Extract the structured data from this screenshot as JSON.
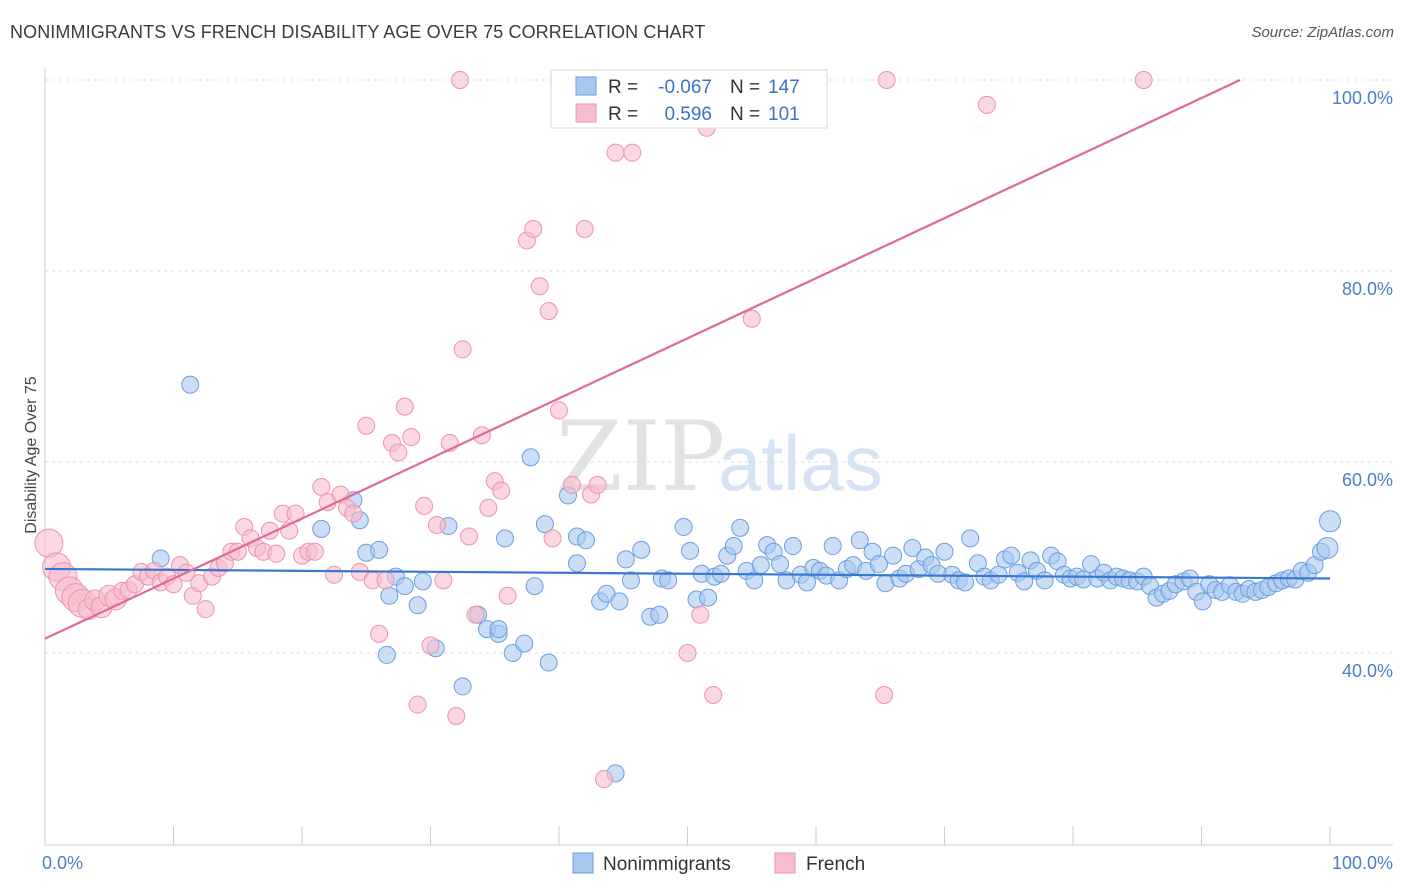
{
  "title": "NONIMMIGRANTS VS FRENCH DISABILITY AGE OVER 75 CORRELATION CHART",
  "source": "Source: ZipAtlas.com",
  "watermark": {
    "zip": "ZIP",
    "atlas": "atlas"
  },
  "colors": {
    "blue_fill": "#a9c8ef",
    "blue_stroke": "#6b9ee0",
    "blue_line": "#3a78cf",
    "pink_fill": "#f7bccd",
    "pink_stroke": "#ee93ae",
    "pink_line": "#e06a92",
    "grid": "#dddddd",
    "axis_text": "#4a7fc8"
  },
  "legend": {
    "rows": [
      {
        "r_label": "R =",
        "r_value": "-0.067",
        "n_label": "N =",
        "n_value": "147",
        "series": "blue"
      },
      {
        "r_label": "R =",
        "r_value": "0.596",
        "n_label": "N =",
        "n_value": "101",
        "series": "pink"
      }
    ]
  },
  "bottom_legend": [
    {
      "label": "Nonimmigrants",
      "series": "blue"
    },
    {
      "label": "French",
      "series": "pink"
    }
  ],
  "chart_data": {
    "type": "scatter",
    "title": "NONIMMIGRANTS VS FRENCH DISABILITY AGE OVER 75 CORRELATION CHART",
    "xlabel": "",
    "ylabel": "Disability Age Over 75",
    "xlim": [
      0,
      100
    ],
    "ylim": [
      20,
      102
    ],
    "x_tick_labels": [
      "0.0%",
      "100.0%"
    ],
    "y_ticks": [
      40,
      60,
      80,
      100
    ],
    "y_tick_labels": [
      "40.0%",
      "60.0%",
      "80.0%",
      "100.0%"
    ],
    "grid": true,
    "legend_position": "top-center",
    "series": [
      {
        "name": "Nonimmigrants",
        "color": "blue",
        "trend": {
          "x": [
            0,
            100
          ],
          "y": [
            48.8,
            47.8
          ]
        },
        "points": [
          [
            9,
            49.9
          ],
          [
            11.3,
            68.1
          ],
          [
            21.5,
            53
          ],
          [
            24,
            56
          ],
          [
            24.5,
            53.9
          ],
          [
            25,
            50.5
          ],
          [
            26,
            50.8
          ],
          [
            26.6,
            39.8
          ],
          [
            26.8,
            46
          ],
          [
            27.3,
            48
          ],
          [
            28,
            47
          ],
          [
            29,
            45
          ],
          [
            29.4,
            47.5
          ],
          [
            30.4,
            40.5
          ],
          [
            31.4,
            53.3
          ],
          [
            32.5,
            36.5
          ],
          [
            33.7,
            44
          ],
          [
            34.4,
            42.5
          ],
          [
            35.3,
            42
          ],
          [
            35.3,
            42.5
          ],
          [
            35.8,
            52
          ],
          [
            36.4,
            40
          ],
          [
            37.3,
            41
          ],
          [
            37.8,
            60.5
          ],
          [
            38.1,
            47
          ],
          [
            38.9,
            53.5
          ],
          [
            39.2,
            39
          ],
          [
            40.7,
            56.5
          ],
          [
            41.4,
            49.4
          ],
          [
            41.4,
            52.2
          ],
          [
            42.1,
            51.8
          ],
          [
            43.2,
            45.4
          ],
          [
            43.7,
            46.2
          ],
          [
            44.4,
            27.4
          ],
          [
            44.7,
            45.4
          ],
          [
            45.2,
            49.8
          ],
          [
            45.6,
            47.6
          ],
          [
            46.4,
            50.8
          ],
          [
            47.1,
            43.8
          ],
          [
            47.8,
            44
          ],
          [
            48,
            47.8
          ],
          [
            48.5,
            47.6
          ],
          [
            49.7,
            53.2
          ],
          [
            50.2,
            50.7
          ],
          [
            50.7,
            45.6
          ],
          [
            51.1,
            48.3
          ],
          [
            51.6,
            45.8
          ],
          [
            52.1,
            48
          ],
          [
            52.6,
            48.3
          ],
          [
            53.1,
            50.2
          ],
          [
            53.6,
            51.2
          ],
          [
            54.1,
            53.1
          ],
          [
            54.6,
            48.6
          ],
          [
            55.2,
            47.6
          ],
          [
            55.7,
            49.2
          ],
          [
            56.2,
            51.3
          ],
          [
            56.7,
            50.6
          ],
          [
            57.2,
            49.3
          ],
          [
            57.7,
            47.6
          ],
          [
            58.2,
            51.2
          ],
          [
            58.8,
            48.2
          ],
          [
            59.3,
            47.4
          ],
          [
            59.8,
            48.9
          ],
          [
            60.3,
            48.6
          ],
          [
            60.8,
            48.1
          ],
          [
            61.3,
            51.2
          ],
          [
            61.8,
            47.6
          ],
          [
            62.4,
            48.8
          ],
          [
            62.9,
            49.2
          ],
          [
            63.4,
            51.8
          ],
          [
            63.9,
            48.6
          ],
          [
            64.4,
            50.6
          ],
          [
            64.9,
            49.3
          ],
          [
            65.4,
            47.3
          ],
          [
            66,
            50.2
          ],
          [
            66.5,
            47.8
          ],
          [
            67,
            48.3
          ],
          [
            67.5,
            51
          ],
          [
            68,
            48.8
          ],
          [
            68.5,
            50
          ],
          [
            69,
            49.2
          ],
          [
            69.5,
            48.3
          ],
          [
            70,
            50.6
          ],
          [
            70.6,
            48.2
          ],
          [
            71.1,
            47.6
          ],
          [
            71.6,
            47.4
          ],
          [
            72,
            52
          ],
          [
            72.6,
            49.4
          ],
          [
            73.1,
            48
          ],
          [
            73.6,
            47.6
          ],
          [
            74.2,
            48.2
          ],
          [
            74.7,
            49.8
          ],
          [
            75.2,
            50.2
          ],
          [
            75.7,
            48.4
          ],
          [
            76.2,
            47.5
          ],
          [
            76.7,
            49.7
          ],
          [
            77.2,
            48.6
          ],
          [
            77.8,
            47.6
          ],
          [
            78.3,
            50.2
          ],
          [
            78.8,
            49.6
          ],
          [
            79.3,
            48.2
          ],
          [
            79.8,
            47.8
          ],
          [
            80.3,
            48
          ],
          [
            80.8,
            47.7
          ],
          [
            81.4,
            49.3
          ],
          [
            81.9,
            47.8
          ],
          [
            82.4,
            48.4
          ],
          [
            82.9,
            47.6
          ],
          [
            83.4,
            48
          ],
          [
            83.9,
            47.8
          ],
          [
            84.4,
            47.6
          ],
          [
            85,
            47.5
          ],
          [
            85.5,
            48
          ],
          [
            86,
            47
          ],
          [
            86.5,
            45.8
          ],
          [
            87,
            46.2
          ],
          [
            87.5,
            46.5
          ],
          [
            88,
            47.2
          ],
          [
            88.6,
            47.5
          ],
          [
            89.1,
            47.8
          ],
          [
            89.6,
            46.4
          ],
          [
            90.1,
            45.4
          ],
          [
            90.6,
            47.2
          ],
          [
            91.1,
            46.6
          ],
          [
            91.6,
            46.4
          ],
          [
            92.2,
            47.1
          ],
          [
            92.7,
            46.4
          ],
          [
            93.2,
            46.2
          ],
          [
            93.7,
            46.7
          ],
          [
            94.2,
            46.4
          ],
          [
            94.7,
            46.6
          ],
          [
            95.2,
            46.9
          ],
          [
            95.8,
            47.3
          ],
          [
            96.3,
            47.6
          ],
          [
            96.8,
            47.8
          ],
          [
            97.3,
            47.7
          ],
          [
            97.8,
            48.6
          ],
          [
            98.3,
            48.4
          ],
          [
            98.8,
            49.2
          ],
          [
            99.3,
            50.6
          ],
          [
            99.8,
            51
          ],
          [
            100,
            53.8
          ]
        ]
      },
      {
        "name": "French",
        "color": "pink",
        "trend": {
          "x": [
            0,
            93
          ],
          "y": [
            41.5,
            100
          ]
        },
        "points": [
          [
            0.3,
            51.5
          ],
          [
            0.9,
            49
          ],
          [
            1.4,
            48
          ],
          [
            1.9,
            46.5
          ],
          [
            2.4,
            45.8
          ],
          [
            2.9,
            45.2
          ],
          [
            3.4,
            44.6
          ],
          [
            3.9,
            45.5
          ],
          [
            4.4,
            44.8
          ],
          [
            5,
            46
          ],
          [
            5.5,
            45.6
          ],
          [
            6,
            46.5
          ],
          [
            6.5,
            46.6
          ],
          [
            7,
            47.2
          ],
          [
            7.5,
            48.5
          ],
          [
            8,
            48
          ],
          [
            8.5,
            48.6
          ],
          [
            9,
            47.4
          ],
          [
            9.5,
            48
          ],
          [
            10,
            47.2
          ],
          [
            10.5,
            49.2
          ],
          [
            11,
            48.4
          ],
          [
            11.5,
            46
          ],
          [
            12,
            47.3
          ],
          [
            12.5,
            44.6
          ],
          [
            13,
            48
          ],
          [
            13.5,
            48.9
          ],
          [
            14,
            49.4
          ],
          [
            14.5,
            50.6
          ],
          [
            15,
            50.6
          ],
          [
            15.5,
            53.2
          ],
          [
            16,
            52
          ],
          [
            16.5,
            51
          ],
          [
            17,
            50.6
          ],
          [
            17.5,
            52.8
          ],
          [
            18,
            50.4
          ],
          [
            18.5,
            54.6
          ],
          [
            19,
            52.8
          ],
          [
            19.5,
            54.6
          ],
          [
            20,
            50.2
          ],
          [
            20.5,
            50.6
          ],
          [
            21,
            50.6
          ],
          [
            21.5,
            57.4
          ],
          [
            22,
            55.8
          ],
          [
            22.5,
            48.2
          ],
          [
            23,
            56.6
          ],
          [
            23.5,
            55.2
          ],
          [
            24,
            54.6
          ],
          [
            24.5,
            48.5
          ],
          [
            25,
            63.8
          ],
          [
            25.5,
            47.6
          ],
          [
            26,
            42
          ],
          [
            26.5,
            47.6
          ],
          [
            27,
            62
          ],
          [
            27.5,
            61
          ],
          [
            28,
            65.8
          ],
          [
            28.5,
            62.6
          ],
          [
            29,
            34.6
          ],
          [
            29.5,
            55.4
          ],
          [
            30,
            40.8
          ],
          [
            30.5,
            53.4
          ],
          [
            31,
            47.6
          ],
          [
            31.5,
            62
          ],
          [
            32,
            33.4
          ],
          [
            32.3,
            100
          ],
          [
            32.5,
            71.8
          ],
          [
            33,
            52.2
          ],
          [
            33.5,
            44
          ],
          [
            34,
            62.8
          ],
          [
            34.5,
            55.2
          ],
          [
            35,
            58
          ],
          [
            35.5,
            57
          ],
          [
            36,
            46
          ],
          [
            37.5,
            83.2
          ],
          [
            38,
            84.4
          ],
          [
            38.5,
            78.4
          ],
          [
            39.2,
            75.8
          ],
          [
            39.5,
            52
          ],
          [
            40,
            65.4
          ],
          [
            40.5,
            97
          ],
          [
            41,
            57.6
          ],
          [
            42,
            84.4
          ],
          [
            42.5,
            56.6
          ],
          [
            43,
            57.6
          ],
          [
            43.5,
            26.8
          ],
          [
            44.4,
            92.4
          ],
          [
            45.7,
            92.4
          ],
          [
            46,
            99.8
          ],
          [
            50,
            40
          ],
          [
            51,
            44
          ],
          [
            51.5,
            95
          ],
          [
            52,
            35.6
          ],
          [
            55,
            75
          ],
          [
            65.3,
            35.6
          ],
          [
            65.5,
            100
          ],
          [
            73.3,
            97.4
          ],
          [
            85.5,
            100
          ]
        ]
      }
    ]
  }
}
